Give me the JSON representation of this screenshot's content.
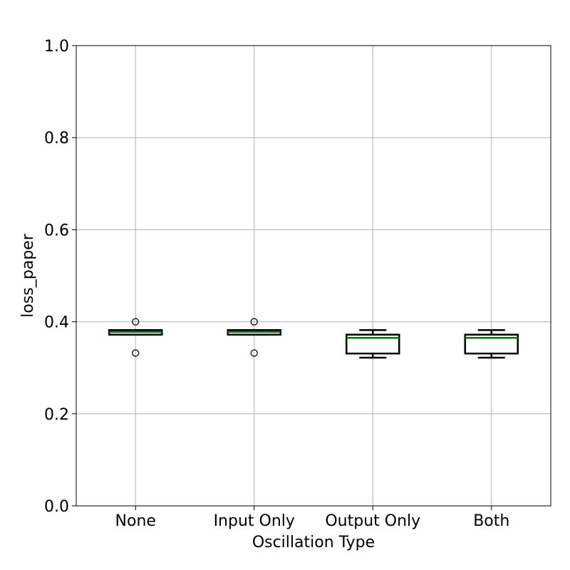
{
  "chart_data": {
    "type": "box",
    "title": "",
    "xlabel": "Oscillation Type",
    "ylabel": "loss_paper",
    "ylim": [
      0.0,
      1.0
    ],
    "yticks": [
      0.0,
      0.2,
      0.4,
      0.6,
      0.8,
      1.0
    ],
    "ytick_labels": [
      "0.0",
      "0.2",
      "0.4",
      "0.6",
      "0.8",
      "1.0"
    ],
    "grid": true,
    "categories": [
      "None",
      "Input Only",
      "Output Only",
      "Both"
    ],
    "boxes": [
      {
        "category": "None",
        "whisker_low": 0.372,
        "q1": 0.372,
        "median": 0.378,
        "q3": 0.382,
        "whisker_high": 0.382,
        "fliers": [
          0.4,
          0.332
        ]
      },
      {
        "category": "Input Only",
        "whisker_low": 0.372,
        "q1": 0.372,
        "median": 0.378,
        "q3": 0.382,
        "whisker_high": 0.382,
        "fliers": [
          0.4,
          0.332
        ]
      },
      {
        "category": "Output Only",
        "whisker_low": 0.322,
        "q1": 0.331,
        "median": 0.365,
        "q3": 0.372,
        "whisker_high": 0.382,
        "fliers": []
      },
      {
        "category": "Both",
        "whisker_low": 0.322,
        "q1": 0.331,
        "median": 0.365,
        "q3": 0.372,
        "whisker_high": 0.382,
        "fliers": []
      }
    ],
    "colors": {
      "median": "#008000",
      "box": "#000000",
      "grid": "#b0b0b0"
    }
  }
}
